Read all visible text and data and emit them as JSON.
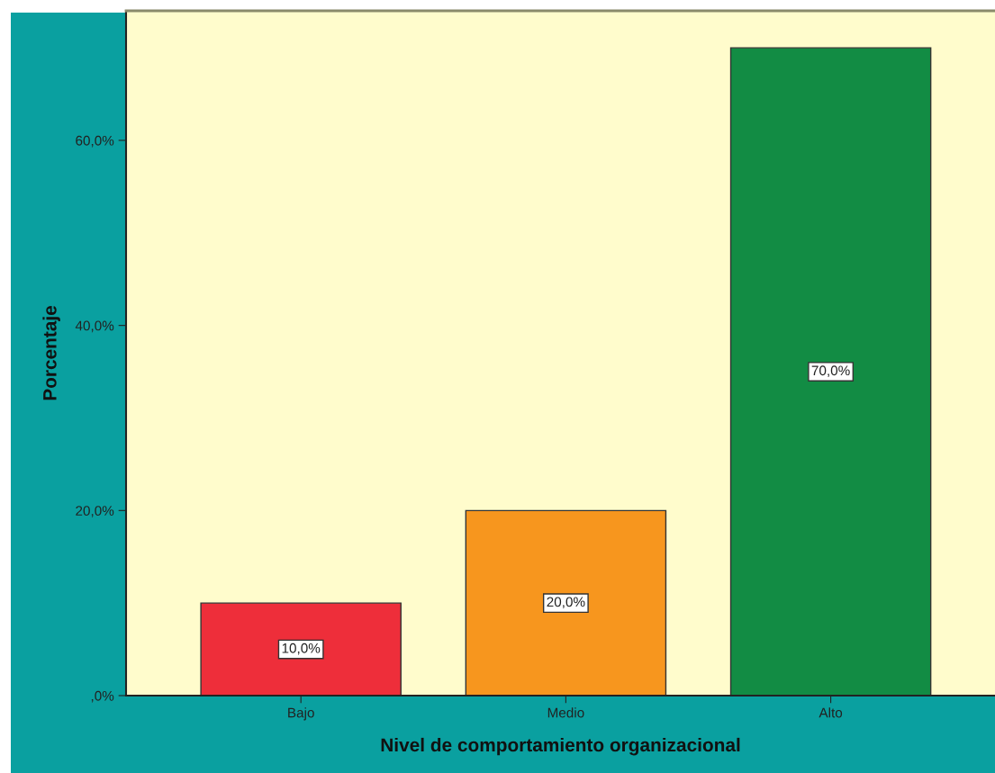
{
  "chart_data": {
    "type": "bar",
    "xlabel": "Nivel de comportamiento organizacional",
    "ylabel": "Porcentaje",
    "categories": [
      "Bajo",
      "Medio",
      "Alto"
    ],
    "values": [
      10,
      20,
      70
    ],
    "colors": [
      "#ee2e3a",
      "#f7961e",
      "#128c44"
    ],
    "value_labels": [
      "10,0%",
      "20,0%",
      "70,0%"
    ],
    "ylim": [
      0,
      74
    ],
    "yticks": [
      {
        "value": 0,
        "label": ",0%"
      },
      {
        "value": 20,
        "label": "20,0%"
      },
      {
        "value": 40,
        "label": "40,0%"
      },
      {
        "value": 60,
        "label": "60,0%"
      }
    ],
    "grid": false,
    "legend": false
  }
}
